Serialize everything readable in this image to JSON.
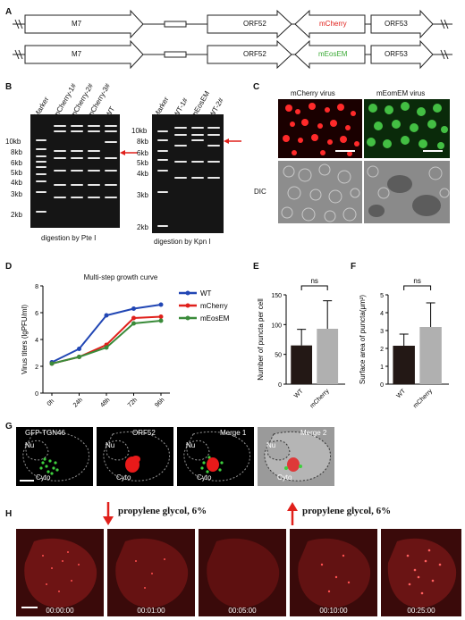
{
  "panels": {
    "A": "A",
    "B": "B",
    "C": "C",
    "D": "D",
    "E": "E",
    "F": "F",
    "G": "G",
    "H": "H"
  },
  "panelA": {
    "row1": {
      "m7": "M7",
      "orf52": "ORF52",
      "reporter": "mCherry",
      "orf53": "ORF53"
    },
    "row2": {
      "m7": "M7",
      "orf52": "ORF52",
      "reporter": "mEosEM",
      "orf53": "ORF53"
    },
    "colors": {
      "mcherry": "#e0201b",
      "meos": "#3aa935"
    }
  },
  "panelB": {
    "gel1": {
      "lanes": [
        "Marker",
        "mCherry-1#",
        "mCherry-2#",
        "mCherry-3#",
        "WT"
      ],
      "caption": "digestion by Pte I"
    },
    "gel2": {
      "lanes": [
        "Marker",
        "WT-1#",
        "mEosEM",
        "WT-2#"
      ],
      "caption": "digestion by Kpn I"
    },
    "sizes1": [
      "10kb",
      "8kb",
      "6kb",
      "5kb",
      "4kb",
      "3kb",
      "2kb"
    ],
    "sizes2": [
      "10kb",
      "8kb",
      "6kb",
      "5kb",
      "4kb",
      "3kb",
      "2kb"
    ]
  },
  "panelC": {
    "col1": "mCherry virus",
    "col2": "mEomEM virus",
    "row2": "DIC"
  },
  "chart_data": [
    {
      "type": "line",
      "title": "Multi-step growth curve",
      "ylabel": "Virus titers (lgPFU/ml)",
      "categories": [
        "0h",
        "24h",
        "48h",
        "72h",
        "96h"
      ],
      "ylim": [
        0,
        8
      ],
      "yticks": [
        "0",
        "2",
        "4",
        "6",
        "8"
      ],
      "series": [
        {
          "name": "WT",
          "color": "#2146b4",
          "values": [
            2.3,
            3.3,
            5.8,
            6.3,
            6.6
          ]
        },
        {
          "name": "mCherry",
          "color": "#e0201b",
          "values": [
            2.2,
            2.7,
            3.6,
            5.6,
            5.7
          ]
        },
        {
          "name": "mEosEM",
          "color": "#3a8b3a",
          "values": [
            2.2,
            2.7,
            3.4,
            5.2,
            5.4
          ]
        }
      ]
    },
    {
      "type": "bar",
      "ylabel": "Number of puncta per cell",
      "categories": [
        "WT",
        "mCherry"
      ],
      "values": [
        65,
        93
      ],
      "errors": [
        27,
        47
      ],
      "colors": [
        "#231815",
        "#b0b0b0"
      ],
      "ylim": [
        0,
        150
      ],
      "yticks": [
        "0",
        "50",
        "100",
        "150"
      ],
      "annotation": "ns"
    },
    {
      "type": "bar",
      "ylabel": "Surface area of puncta(μm²)",
      "categories": [
        "WT",
        "mCherry"
      ],
      "values": [
        2.15,
        3.2
      ],
      "errors": [
        0.65,
        1.35
      ],
      "colors": [
        "#231815",
        "#b0b0b0"
      ],
      "ylim": [
        0,
        5
      ],
      "yticks": [
        "0",
        "1",
        "2",
        "3",
        "4",
        "5"
      ],
      "annotation": "ns"
    }
  ],
  "panelG": {
    "titles": [
      "GFP-TGN46",
      "ORF52",
      "Merge 1",
      "Merge 2"
    ],
    "nu": "Nu",
    "cyto": "Cyto"
  },
  "panelH": {
    "arrow1": "propylene glycol, 6%",
    "arrow2": "propylene glycol, 6%",
    "times": [
      "00:00:00",
      "00:01:00",
      "00:05:00",
      "00:10:00",
      "00:25:00"
    ]
  }
}
